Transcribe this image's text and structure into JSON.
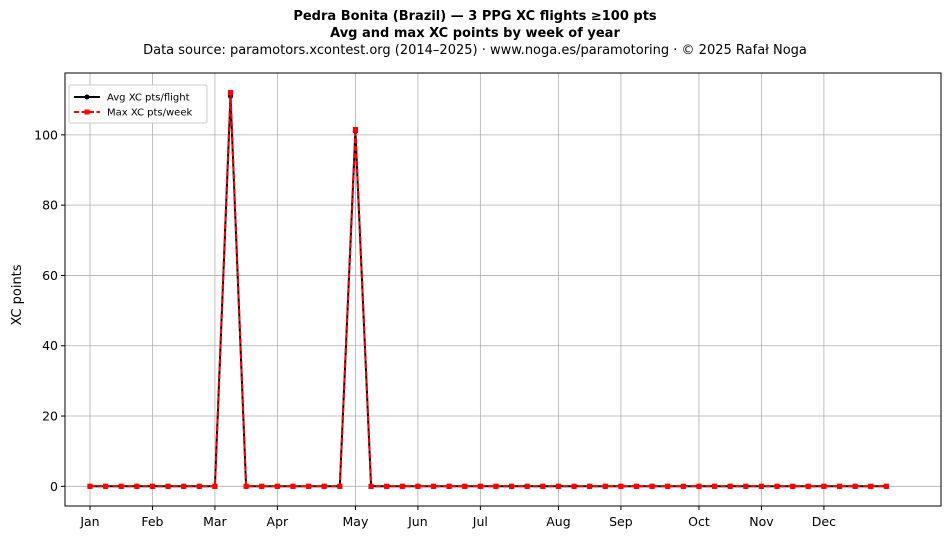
{
  "chart_data": {
    "type": "line",
    "title": "Pedra Bonita (Brazil)  —  3 PPG XC flights ≥100 pts",
    "subtitle": "Avg and max XC points by week of year",
    "source_line": "Data source: paramotors.xcontest.org (2014–2025)  ·  www.noga.es/paramotoring  ·  © 2025 Rafał Noga",
    "xlabel": "",
    "ylabel": "XC points",
    "ylim": [
      -5.6,
      117.6
    ],
    "xlim": [
      -1.6,
      54.5
    ],
    "yticks": [
      0,
      20,
      40,
      60,
      80,
      100
    ],
    "month_ticks": [
      {
        "label": "Jan",
        "week": 0
      },
      {
        "label": "Feb",
        "week": 4
      },
      {
        "label": "Mar",
        "week": 8
      },
      {
        "label": "Apr",
        "week": 12
      },
      {
        "label": "May",
        "week": 17
      },
      {
        "label": "Jun",
        "week": 21
      },
      {
        "label": "Jul",
        "week": 25
      },
      {
        "label": "Aug",
        "week": 30
      },
      {
        "label": "Sep",
        "week": 34
      },
      {
        "label": "Oct",
        "week": 39
      },
      {
        "label": "Nov",
        "week": 43
      },
      {
        "label": "Dec",
        "week": 47
      }
    ],
    "grid": true,
    "legend_position": "top-left",
    "x": [
      0,
      1,
      2,
      3,
      4,
      5,
      6,
      7,
      8,
      9,
      10,
      11,
      12,
      13,
      14,
      15,
      16,
      17,
      18,
      19,
      20,
      21,
      22,
      23,
      24,
      25,
      26,
      27,
      28,
      29,
      30,
      31,
      32,
      33,
      34,
      35,
      36,
      37,
      38,
      39,
      40,
      41,
      42,
      43,
      44,
      45,
      46,
      47,
      48,
      49,
      50,
      51
    ],
    "series": [
      {
        "name": "Avg XC pts/flight",
        "color": "#000000",
        "style": "solid",
        "marker": "circle",
        "values": [
          0,
          0,
          0,
          0,
          0,
          0,
          0,
          0,
          0,
          111,
          0,
          0,
          0,
          0,
          0,
          0,
          0,
          101,
          0,
          0,
          0,
          0,
          0,
          0,
          0,
          0,
          0,
          0,
          0,
          0,
          0,
          0,
          0,
          0,
          0,
          0,
          0,
          0,
          0,
          0,
          0,
          0,
          0,
          0,
          0,
          0,
          0,
          0,
          0,
          0,
          0,
          0
        ]
      },
      {
        "name": "Max XC pts/week",
        "color": "#ff0000",
        "style": "dashed",
        "marker": "square",
        "values": [
          0,
          0,
          0,
          0,
          0,
          0,
          0,
          0,
          0,
          112,
          0,
          0,
          0,
          0,
          0,
          0,
          0,
          101.5,
          0,
          0,
          0,
          0,
          0,
          0,
          0,
          0,
          0,
          0,
          0,
          0,
          0,
          0,
          0,
          0,
          0,
          0,
          0,
          0,
          0,
          0,
          0,
          0,
          0,
          0,
          0,
          0,
          0,
          0,
          0,
          0,
          0,
          0
        ]
      }
    ]
  }
}
